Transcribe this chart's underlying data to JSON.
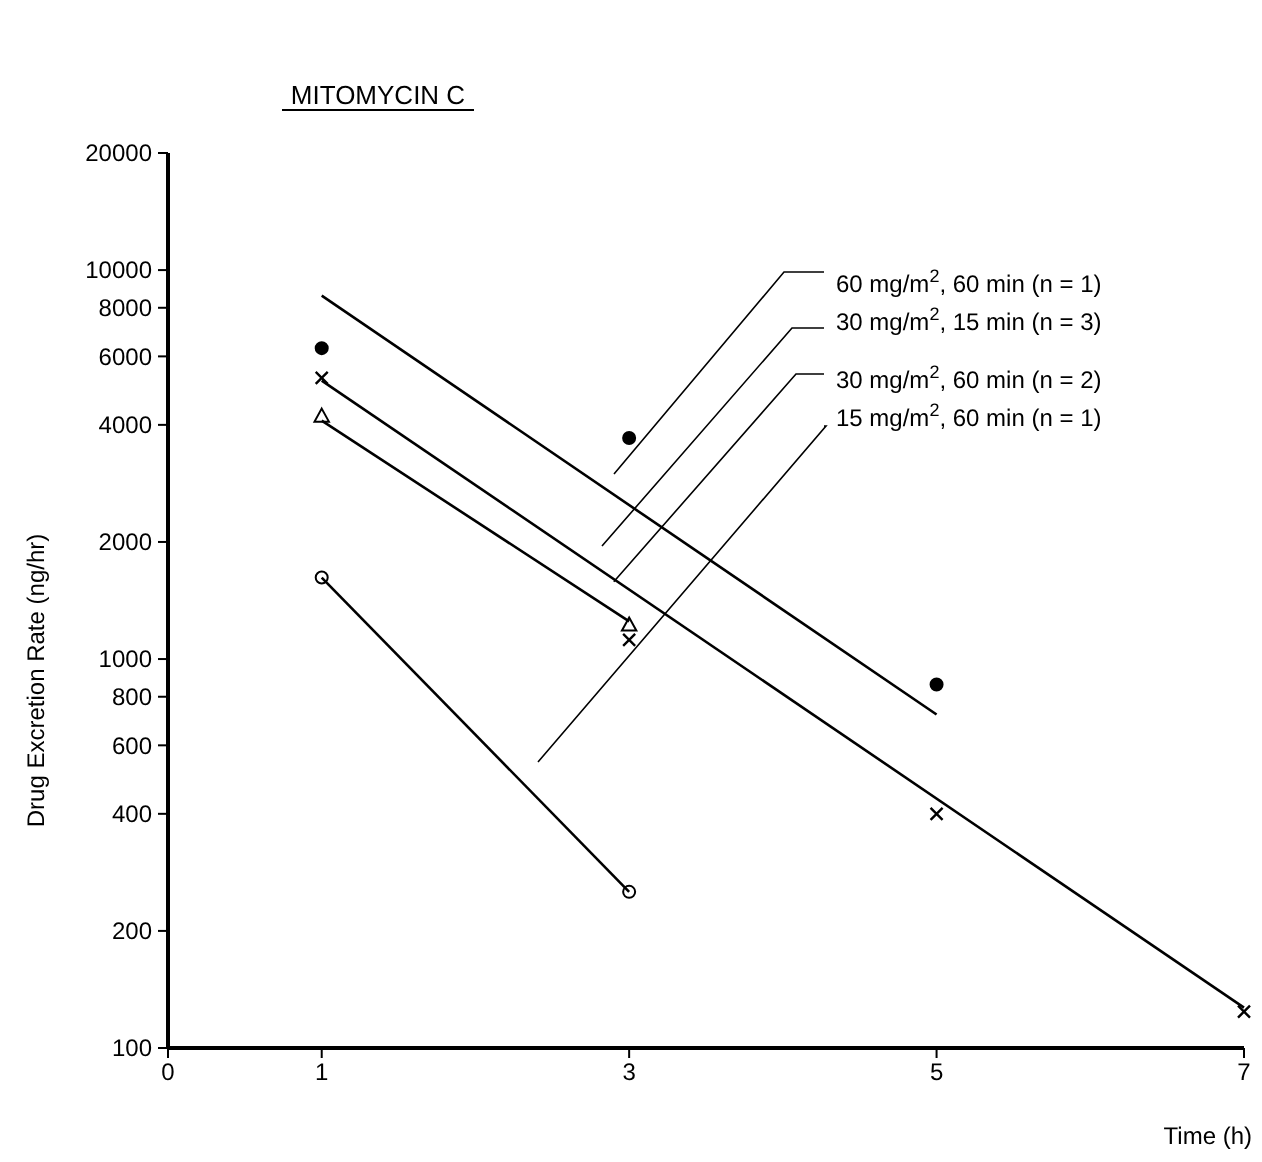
{
  "chart_data": {
    "type": "scatter",
    "title": "MITOMYCIN C",
    "xlabel": "Time (h)",
    "ylabel": "Drug Excretion Rate (ng/hr)",
    "log": "y",
    "xlim": [
      0,
      7
    ],
    "xticks": [
      0,
      1,
      3,
      5,
      7
    ],
    "ylim": [
      100,
      20000
    ],
    "yticks": [
      100,
      200,
      400,
      600,
      800,
      1000,
      2000,
      4000,
      6000,
      8000,
      10000,
      20000
    ],
    "grid": false,
    "annotations": [
      "60 mg/m$^{2}$, 60 min (n = 1)",
      "30 mg/m$^{2}$, 15 min (n = 3)",
      {
        "text": "30 mg/m$^{2}$, 60 min (n = 2)",
        "x": 2.9,
        "y": 1580
      },
      "15 mg/m$^{2}$, 60 min (n = 1)"
    ],
    "series": [
      {
        "type": "scatter",
        "marker": "circle",
        "color": "#000000",
        "x": [
          1,
          3,
          5
        ],
        "values": [
          6300,
          3700,
          860
        ]
      },
      {
        "type": "scatter",
        "marker": "cross",
        "color": "#000000",
        "x": [
          1,
          3,
          5,
          7
        ],
        "values": [
          5280,
          1120,
          400,
          124
        ]
      },
      {
        "type": "scatter",
        "marker": "triangle",
        "color": "#000000",
        "x": [
          1,
          3
        ],
        "values": [
          4200,
          1220
        ]
      },
      {
        "type": "scatter",
        "marker": "circle",
        "color": "#ffffff",
        "x": [
          1,
          3
        ],
        "values": [
          1620,
          252
        ]
      },
      {
        "type": "line",
        "marker": "none",
        "color": "#000000",
        "x": [
          1,
          5
        ],
        "values": [
          8600,
          720
        ]
      },
      {
        "type": "line",
        "marker": "none",
        "color": "#000000",
        "x": [
          1,
          7
        ],
        "values": [
          5200,
          127
        ]
      },
      {
        "type": "line",
        "marker": "none",
        "color": "#000000",
        "x": [
          1,
          3
        ],
        "values": [
          4100,
          1250
        ]
      },
      {
        "type": "line",
        "marker": "none",
        "color": "#000000",
        "x": [
          1,
          3
        ],
        "values": [
          1620,
          252
        ]
      }
    ]
  }
}
